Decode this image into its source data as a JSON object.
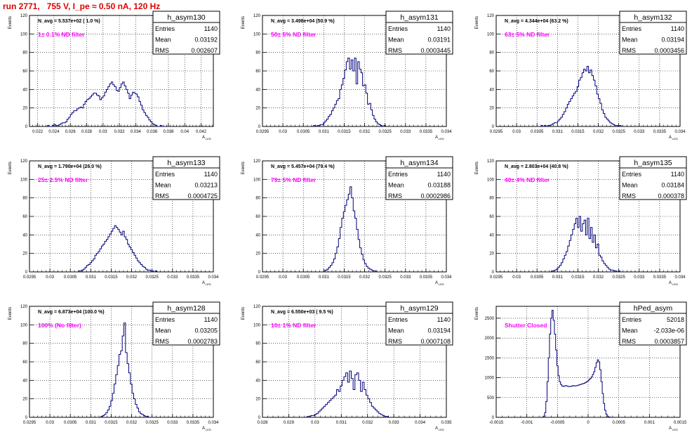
{
  "title": "run 2771,   755 V, I_pe ≈ 0.50 nA, 120 Hz",
  "colors": {
    "title": "#e00000",
    "hist": "#00007a",
    "filter_label": "#ff00ff",
    "grid": "#000000"
  },
  "yaxis_label": "Events",
  "xaxis_label_main": "A",
  "xaxis_label_sub": "LED",
  "stats_labels": {
    "entries": "Entries",
    "mean": "Mean",
    "rms": "RMS"
  },
  "chart_data": [
    {
      "type": "histogram",
      "name": "h_asym130",
      "navg": "N_avg = 5.537e+02 ( 1.0 %)",
      "filter": "1± 0.1% ND filter",
      "stats": {
        "entries": "1140",
        "mean": "0.03192",
        "rms": "0.002607"
      },
      "xlim": [
        0.021,
        0.0435
      ],
      "ylim": [
        0,
        120
      ],
      "xticks": [
        "0.022",
        "0.024",
        "0.026",
        "0.028",
        "0.03",
        "0.032",
        "0.034",
        "0.036",
        "0.038",
        "0.04",
        "0.042"
      ],
      "yticks": [
        "0",
        "20",
        "40",
        "60",
        "80",
        "100",
        "120"
      ],
      "bins": {
        "x0": 0.0232,
        "width": 0.0002,
        "counts": [
          1,
          0,
          0,
          1,
          2,
          1,
          1,
          2,
          3,
          4,
          4,
          5,
          8,
          10,
          13,
          15,
          17,
          17,
          19,
          20,
          21,
          20,
          24,
          27,
          29,
          30,
          32,
          34,
          36,
          36,
          34,
          33,
          29,
          31,
          33,
          37,
          40,
          43,
          46,
          48,
          45,
          43,
          39,
          38,
          42,
          46,
          48,
          44,
          40,
          36,
          30,
          34,
          37,
          36,
          35,
          32,
          27,
          23,
          18,
          15,
          12,
          10,
          7,
          5,
          3,
          2,
          1,
          0,
          0,
          1,
          0,
          0
        ]
      }
    },
    {
      "type": "histogram",
      "name": "h_asym131",
      "navg": "N_avg = 3.498e+04 (50.9 %)",
      "filter": "50± 5% ND filter",
      "stats": {
        "entries": "1140",
        "mean": "0.03191",
        "rms": "0.0003445"
      },
      "xlim": [
        0.0295,
        0.034
      ],
      "ylim": [
        0,
        120
      ],
      "xticks": [
        "0.0295",
        "0.03",
        "0.0305",
        "0.031",
        "0.0315",
        "0.032",
        "0.0325",
        "0.033",
        "0.0335",
        "0.034"
      ],
      "yticks": [
        "0",
        "20",
        "40",
        "60",
        "80",
        "100",
        "120"
      ],
      "bins": {
        "x0": 0.03075,
        "width": 4e-05,
        "counts": [
          1,
          0,
          1,
          1,
          2,
          2,
          4,
          6,
          8,
          11,
          13,
          17,
          20,
          24,
          28,
          30,
          40,
          45,
          52,
          61,
          70,
          74,
          62,
          72,
          60,
          74,
          46,
          70,
          62,
          58,
          44,
          45,
          36,
          24,
          25,
          18,
          12,
          8,
          5,
          3,
          2,
          1,
          0,
          1
        ]
      }
    },
    {
      "type": "histogram",
      "name": "h_asym132",
      "navg": "N_avg = 4.344e+04 (63.2 %)",
      "filter": "63± 5% ND filter",
      "stats": {
        "entries": "1140",
        "mean": "0.03194",
        "rms": "0.0003456"
      },
      "xlim": [
        0.0295,
        0.034
      ],
      "ylim": [
        0,
        120
      ],
      "xticks": [
        "0.0295",
        "0.03",
        "0.0305",
        "0.031",
        "0.0315",
        "0.032",
        "0.0325",
        "0.033",
        "0.0335",
        "0.034"
      ],
      "yticks": [
        "0",
        "20",
        "40",
        "60",
        "80",
        "100",
        "120"
      ],
      "bins": {
        "x0": 0.0306,
        "width": 4e-05,
        "counts": [
          1,
          0,
          1,
          0,
          1,
          1,
          2,
          3,
          4,
          4,
          6,
          8,
          10,
          13,
          16,
          20,
          24,
          27,
          30,
          33,
          36,
          38,
          43,
          50,
          53,
          58,
          62,
          60,
          65,
          58,
          61,
          55,
          50,
          44,
          35,
          30,
          25,
          18,
          14,
          10,
          8,
          6,
          4,
          3,
          2,
          1,
          1,
          0,
          1
        ]
      }
    },
    {
      "type": "histogram",
      "name": "h_asym133",
      "navg": "N_avg = 1.790e+04 (26.0 %)",
      "filter": "25± 2.5% ND filter",
      "stats": {
        "entries": "1140",
        "mean": "0.03213",
        "rms": "0.0004725"
      },
      "xlim": [
        0.0295,
        0.034
      ],
      "ylim": [
        0,
        120
      ],
      "xticks": [
        "0.0295",
        "0.03",
        "0.0305",
        "0.031",
        "0.0315",
        "0.032",
        "0.0325",
        "0.033",
        "0.0335",
        "0.034"
      ],
      "yticks": [
        "0",
        "20",
        "40",
        "60",
        "80",
        "100",
        "120"
      ],
      "bins": {
        "x0": 0.0307,
        "width": 4e-05,
        "counts": [
          1,
          1,
          2,
          3,
          5,
          7,
          8,
          10,
          12,
          14,
          18,
          20,
          22,
          25,
          28,
          30,
          33,
          35,
          38,
          41,
          44,
          47,
          50,
          48,
          46,
          43,
          40,
          44,
          38,
          35,
          30,
          27,
          24,
          21,
          18,
          15,
          12,
          10,
          8,
          6,
          5,
          3,
          2,
          2,
          1,
          1,
          0,
          1
        ]
      }
    },
    {
      "type": "histogram",
      "name": "h_asym134",
      "navg": "N_avg = 5.457e+04 (79.4 %)",
      "filter": "79± 5% ND filter",
      "stats": {
        "entries": "1140",
        "mean": "0.03188",
        "rms": "0.0002986"
      },
      "xlim": [
        0.0295,
        0.034
      ],
      "ylim": [
        0,
        120
      ],
      "xticks": [
        "0.0295",
        "0.03",
        "0.0305",
        "0.031",
        "0.0315",
        "0.032",
        "0.0325",
        "0.033",
        "0.0335",
        "0.034"
      ],
      "yticks": [
        "0",
        "20",
        "40",
        "60",
        "80",
        "100",
        "120"
      ],
      "bins": {
        "x0": 0.031,
        "width": 4e-05,
        "counts": [
          1,
          2,
          3,
          5,
          7,
          10,
          14,
          20,
          27,
          36,
          48,
          58,
          65,
          72,
          78,
          84,
          92,
          80,
          66,
          58,
          46,
          35,
          26,
          19,
          13,
          9,
          6,
          4,
          3,
          2,
          1,
          1
        ]
      }
    },
    {
      "type": "histogram",
      "name": "h_asym135",
      "navg": "N_avg = 2.803e+04 (40.8 %)",
      "filter": "40± 4% ND filter",
      "stats": {
        "entries": "1140",
        "mean": "0.03184",
        "rms": "0.000378"
      },
      "xlim": [
        0.0295,
        0.034
      ],
      "ylim": [
        0,
        120
      ],
      "xticks": [
        "0.0295",
        "0.03",
        "0.0305",
        "0.031",
        "0.0315",
        "0.032",
        "0.0325",
        "0.033",
        "0.0335",
        "0.034"
      ],
      "yticks": [
        "0",
        "20",
        "40",
        "60",
        "80",
        "100",
        "120"
      ],
      "bins": {
        "x0": 0.03085,
        "width": 4e-05,
        "counts": [
          1,
          1,
          2,
          3,
          5,
          7,
          10,
          14,
          18,
          22,
          28,
          34,
          40,
          46,
          52,
          58,
          48,
          60,
          44,
          52,
          56,
          40,
          58,
          36,
          48,
          32,
          40,
          26,
          30,
          18,
          16,
          12,
          9,
          7,
          5,
          3,
          2,
          2,
          1,
          1,
          0,
          1
        ]
      }
    },
    {
      "type": "histogram",
      "name": "h_asym128",
      "navg": "N_avg = 6.873e+04 (100.0 %)",
      "filter": "100% (No filter)",
      "stats": {
        "entries": "1140",
        "mean": "0.03205",
        "rms": "0.0002783"
      },
      "xlim": [
        0.0295,
        0.034
      ],
      "ylim": [
        0,
        120
      ],
      "xticks": [
        "0.0295",
        "0.03",
        "0.0305",
        "0.031",
        "0.0315",
        "0.032",
        "0.0325",
        "0.033",
        "0.0335",
        "0.034"
      ],
      "yticks": [
        "0",
        "20",
        "40",
        "60",
        "80",
        "100",
        "120"
      ],
      "bins": {
        "x0": 0.03125,
        "width": 4e-05,
        "counts": [
          1,
          2,
          3,
          5,
          8,
          12,
          18,
          26,
          36,
          46,
          56,
          68,
          72,
          88,
          102,
          70,
          58,
          48,
          36,
          26,
          20,
          14,
          10,
          6,
          4,
          3,
          2,
          1,
          1
        ]
      }
    },
    {
      "type": "histogram",
      "name": "h_asym129",
      "navg": "N_avg = 6.550e+03 ( 9.5 %)",
      "filter": "10± 1% ND filter",
      "stats": {
        "entries": "1140",
        "mean": "0.03194",
        "rms": "0.0007108"
      },
      "xlim": [
        0.028,
        0.035
      ],
      "ylim": [
        0,
        120
      ],
      "xticks": [
        "0.028",
        "0.029",
        "0.03",
        "0.031",
        "0.032",
        "0.033",
        "0.034",
        "0.035"
      ],
      "yticks": [
        "0",
        "20",
        "40",
        "60",
        "80",
        "100",
        "120"
      ],
      "bins": {
        "x0": 0.0297,
        "width": 7e-05,
        "counts": [
          1,
          1,
          2,
          2,
          3,
          4,
          6,
          8,
          10,
          12,
          14,
          16,
          18,
          20,
          22,
          24,
          30,
          28,
          34,
          40,
          44,
          48,
          38,
          50,
          42,
          30,
          46,
          48,
          40,
          28,
          38,
          30,
          24,
          20,
          16,
          12,
          10,
          8,
          6,
          4,
          3,
          2,
          1,
          1
        ]
      }
    },
    {
      "type": "histogram",
      "name": "hPed_asym",
      "navg": "",
      "filter": "Shutter Closed",
      "stats": {
        "entries": "52018",
        "mean": "-2.033e-06",
        "rms": "0.0003857"
      },
      "xlim": [
        -0.0015,
        0.0015
      ],
      "ylim": [
        0,
        2800
      ],
      "xticks": [
        "-0.0015",
        "-0.001",
        "-0.0005",
        "0",
        "0.0005",
        "0.001",
        "0.0015"
      ],
      "yticks": [
        "0",
        "500",
        "1000",
        "1500",
        "2000",
        "2500"
      ],
      "bins": {
        "x0": -0.00075,
        "width": 2e-05,
        "counts": [
          5,
          30,
          120,
          400,
          900,
          1500,
          2100,
          2500,
          2700,
          2450,
          2100,
          1700,
          1300,
          1050,
          900,
          830,
          790,
          780,
          790,
          800,
          790,
          780,
          775,
          780,
          790,
          800,
          790,
          795,
          800,
          810,
          820,
          830,
          840,
          850,
          860,
          880,
          900,
          920,
          950,
          980,
          1020,
          1080,
          1150,
          1260,
          1380,
          1450,
          1400,
          1200,
          900,
          600,
          350,
          180,
          80,
          30,
          10,
          5
        ]
      }
    }
  ]
}
